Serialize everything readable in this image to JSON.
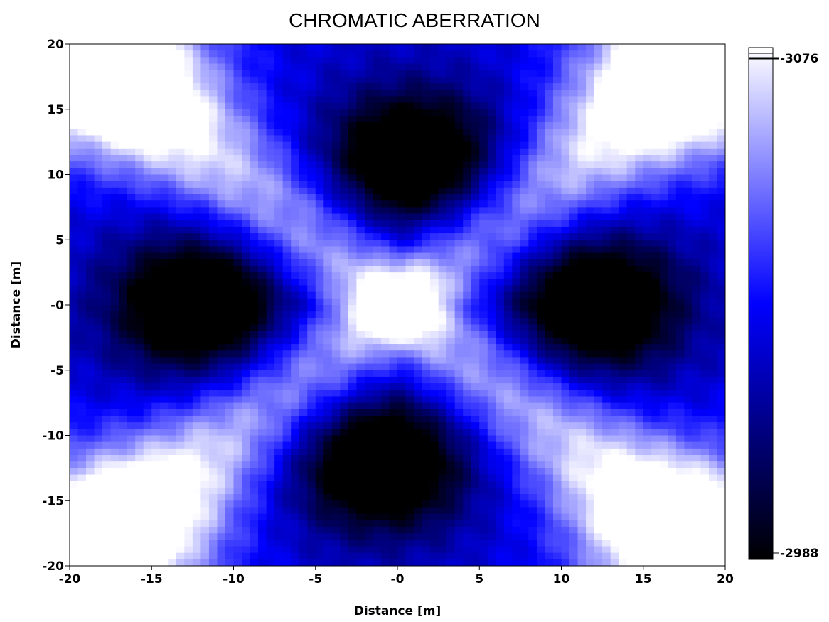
{
  "chart_data": {
    "type": "heatmap",
    "title": "CHROMATIC ABERRATION",
    "xlabel": "Distance [m]",
    "ylabel": "Distance [m]",
    "xlim": [
      -20,
      20
    ],
    "ylim": [
      -20,
      20
    ],
    "x_ticks": [
      {
        "value": -20,
        "label": "-20"
      },
      {
        "value": -15,
        "label": "-15"
      },
      {
        "value": -10,
        "label": "-10"
      },
      {
        "value": -5,
        "label": "-5"
      },
      {
        "value": 0,
        "label": "-0"
      },
      {
        "value": 5,
        "label": "5"
      },
      {
        "value": 10,
        "label": "10"
      },
      {
        "value": 15,
        "label": "15"
      },
      {
        "value": 20,
        "label": "20"
      }
    ],
    "y_ticks": [
      {
        "value": 20,
        "label": "20"
      },
      {
        "value": 15,
        "label": "15"
      },
      {
        "value": 10,
        "label": "10"
      },
      {
        "value": 5,
        "label": "5"
      },
      {
        "value": 0,
        "label": "-0"
      },
      {
        "value": -5,
        "label": "-5"
      },
      {
        "value": -10,
        "label": "-10"
      },
      {
        "value": -15,
        "label": "-15"
      },
      {
        "value": -20,
        "label": "-20"
      }
    ],
    "colorbar": {
      "label_top": "-3076",
      "label_bottom": "-2988",
      "colors": [
        "#ffffff",
        "#0000ff",
        "#000000"
      ]
    },
    "grid": false,
    "legend": "colorbar-right",
    "field": {
      "description": "cross-shaped bright band through center with dark lobes left/right/top/bottom and bright corners",
      "features": [
        {
          "kind": "bright",
          "x": -18,
          "y": 18,
          "strength": 1.0
        },
        {
          "kind": "bright",
          "x": 18,
          "y": 18,
          "strength": 1.0
        },
        {
          "kind": "bright",
          "x": -18,
          "y": -18,
          "strength": 1.0
        },
        {
          "kind": "bright",
          "x": 18,
          "y": -18,
          "strength": 1.0
        },
        {
          "kind": "bright",
          "x": 0,
          "y": 0,
          "strength": 0.85
        },
        {
          "kind": "dark",
          "x": -12,
          "y": 0,
          "strength": 1.0
        },
        {
          "kind": "dark",
          "x": 12,
          "y": 0,
          "strength": 1.0
        },
        {
          "kind": "dark",
          "x": 1,
          "y": 11,
          "strength": 1.0
        },
        {
          "kind": "dark",
          "x": -1,
          "y": -12,
          "strength": 1.0
        }
      ]
    }
  }
}
